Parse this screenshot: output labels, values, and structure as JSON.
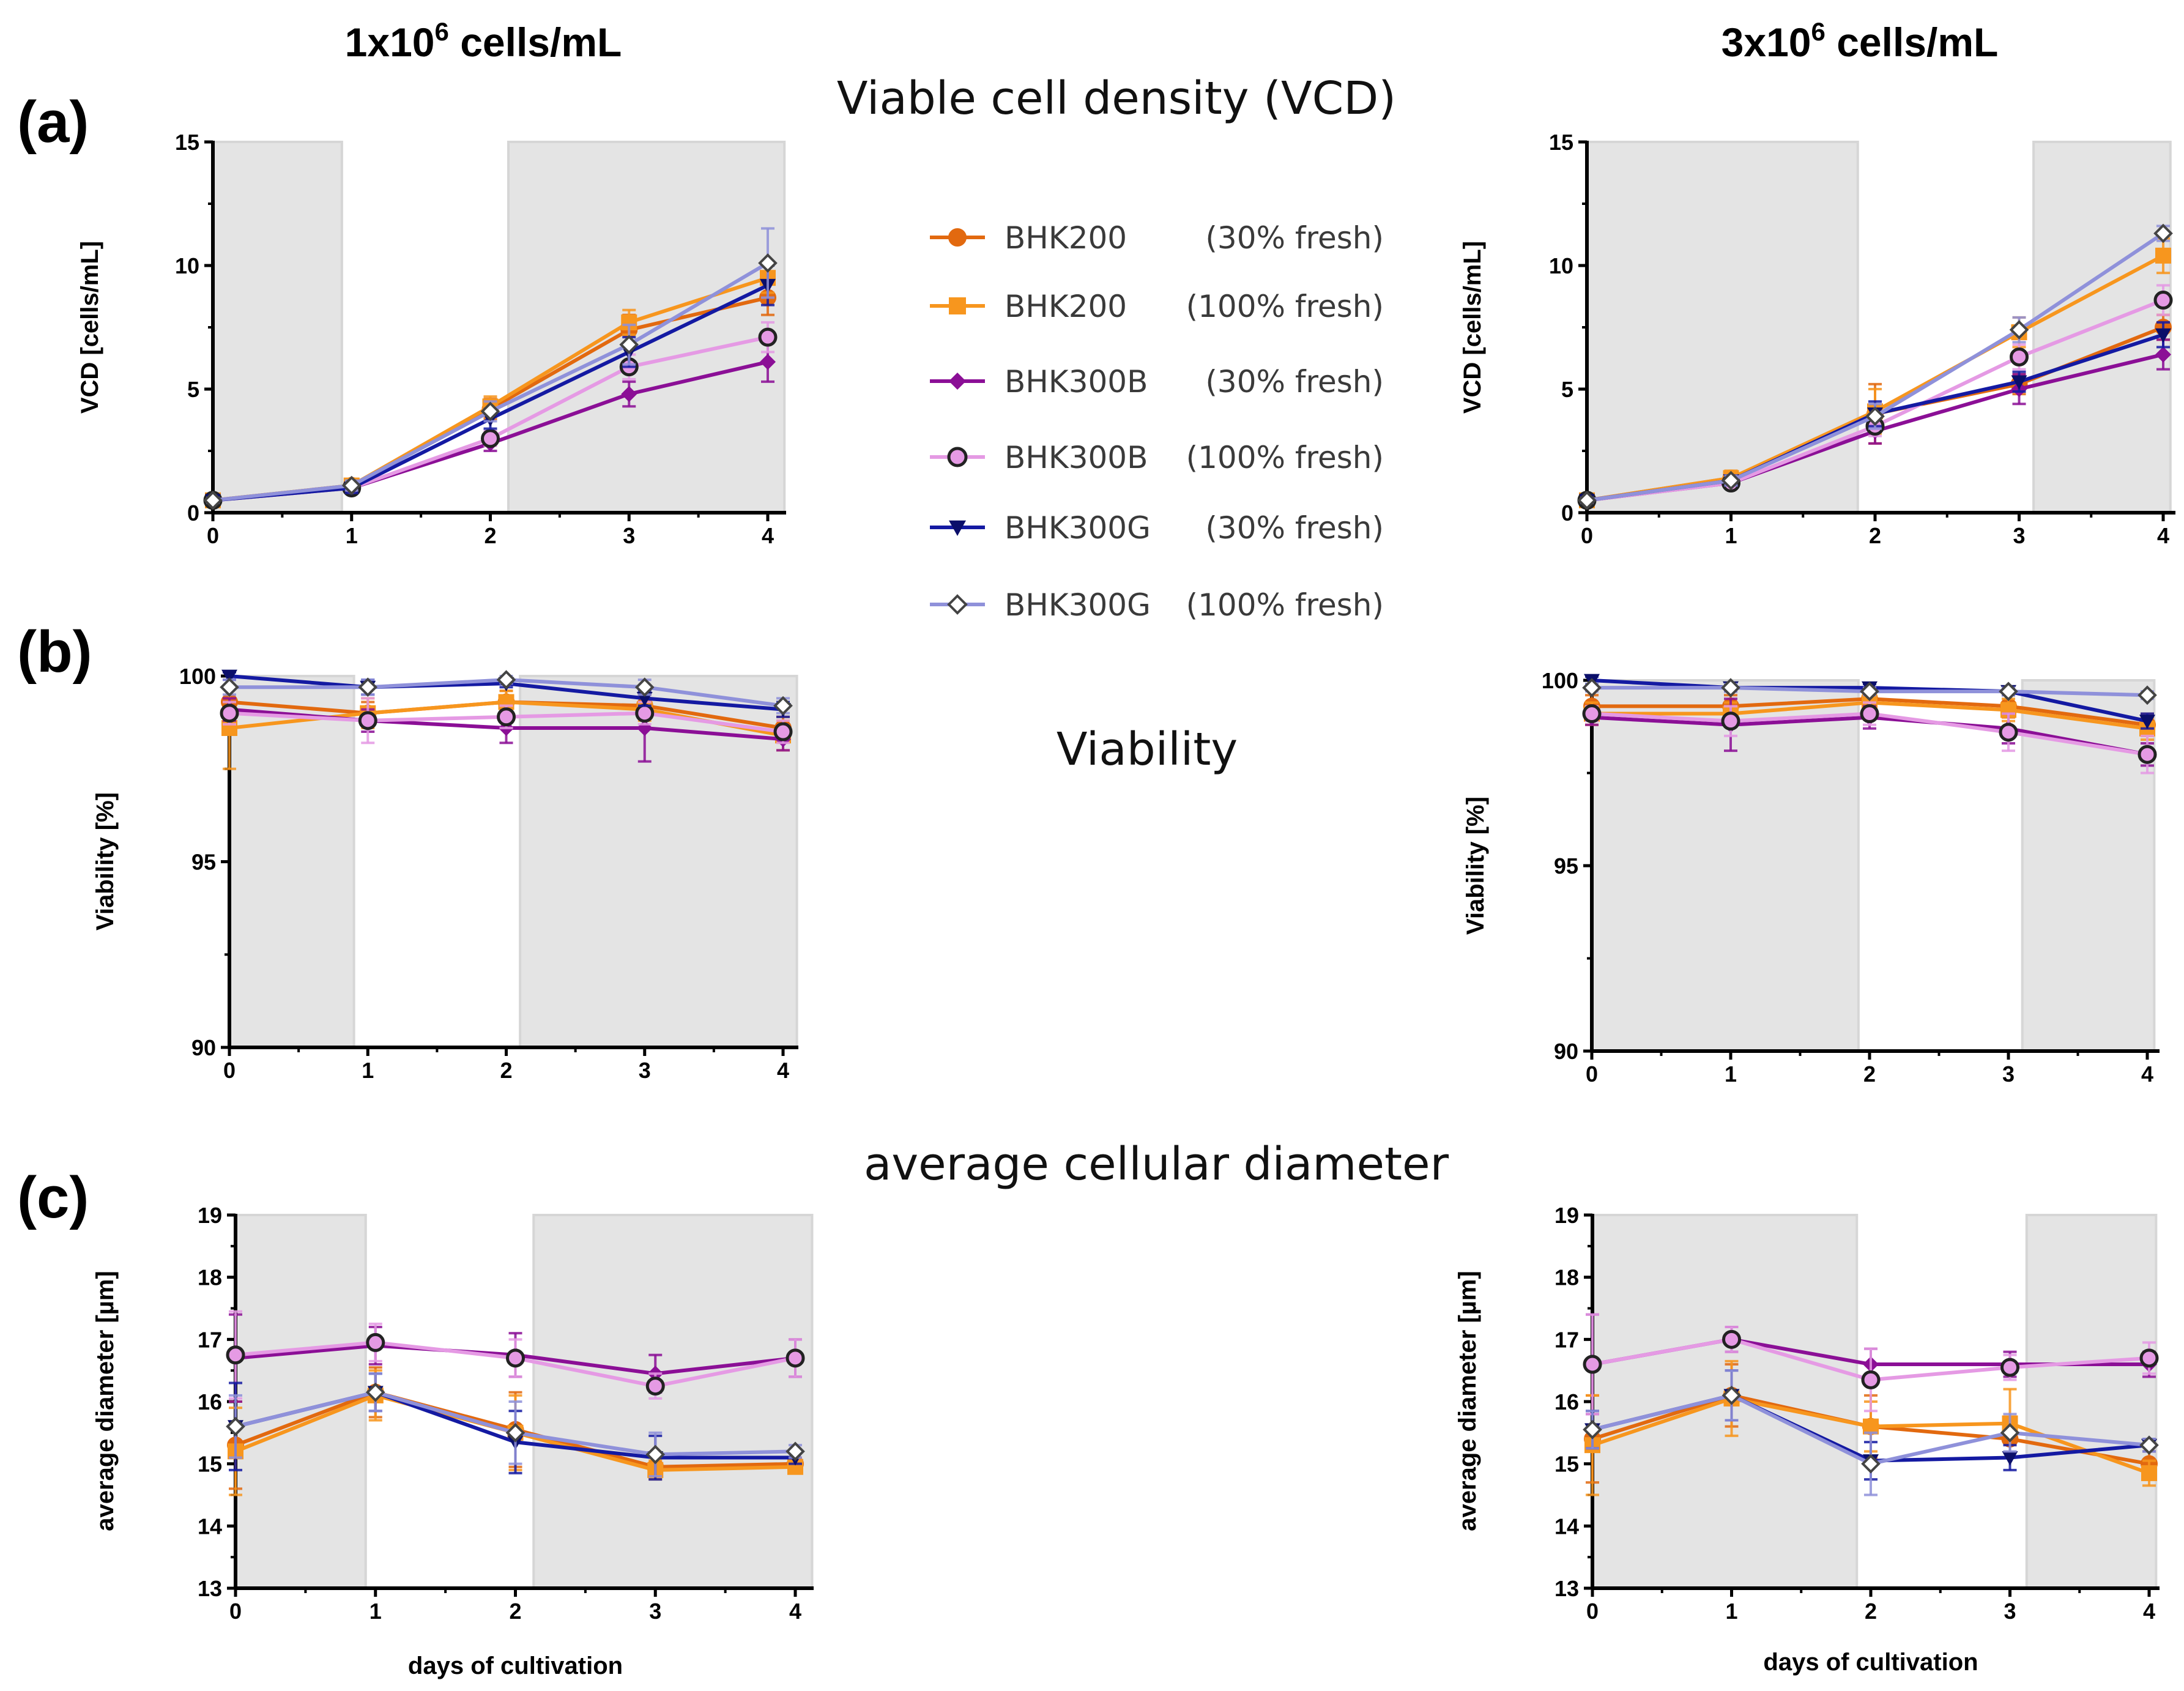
{
  "column_titles": [
    {
      "base": "1x10",
      "exp": "6",
      "rest": " cells/mL"
    },
    {
      "base": "3x10",
      "exp": "6",
      "rest": " cells/mL"
    }
  ],
  "panel_labels": [
    "(a)",
    "(b)",
    "(c)"
  ],
  "section_titles": [
    "Viable cell density (VCD)",
    "Viability",
    "average cellular diameter"
  ],
  "colors": {
    "bhk200_30": "#e2690f",
    "bhk200_100": "#f7961e",
    "bhk300b_30": "#8b0f96",
    "bhk300b_100": "#e59ae4",
    "bhk300g_30": "#141aa2",
    "bhk300g_100": "#8f91da",
    "shade": "#e4e4e4"
  },
  "legend": [
    {
      "name": "BHK200",
      "condition": "(30% fresh)",
      "marker": "circle",
      "color_key": "bhk200_30"
    },
    {
      "name": "BHK200",
      "condition": "(100% fresh)",
      "marker": "square",
      "color_key": "bhk200_100"
    },
    {
      "name": "BHK300B",
      "condition": "(30% fresh)",
      "marker": "diamond",
      "color_key": "bhk300b_30"
    },
    {
      "name": "BHK300B",
      "condition": "(100% fresh)",
      "marker": "circle-open",
      "color_key": "bhk300b_100"
    },
    {
      "name": "BHK300G",
      "condition": "(30% fresh)",
      "marker": "triangle-down",
      "color_key": "bhk300g_30"
    },
    {
      "name": "BHK300G",
      "condition": "(100% fresh)",
      "marker": "diamond-open",
      "color_key": "bhk300g_100"
    }
  ],
  "chart_data": [
    {
      "id": "vcd_1e6",
      "type": "line",
      "title": "Viable cell density (VCD)",
      "xlabel": "",
      "ylabel": "VCD [cells/mL]",
      "x": [
        0,
        1,
        2,
        3,
        4
      ],
      "xlim": [
        0,
        4
      ],
      "ylim": [
        0,
        15
      ],
      "yticks": [
        0,
        5,
        10,
        15
      ],
      "shaded_x": [
        [
          0,
          0.93
        ],
        [
          2.13,
          4.12
        ]
      ],
      "series": [
        {
          "name": "BHK200 (30% fresh)",
          "values": [
            0.5,
            1.1,
            4.2,
            7.4,
            8.7
          ],
          "err": [
            0.2,
            0.2,
            0.4,
            0.6,
            0.7
          ]
        },
        {
          "name": "BHK200 (100% fresh)",
          "values": [
            0.5,
            1.1,
            4.3,
            7.7,
            9.5
          ],
          "err": [
            0.2,
            0.2,
            0.4,
            0.5,
            0.6
          ]
        },
        {
          "name": "BHK300B (30% fresh)",
          "values": [
            0.5,
            1.0,
            2.8,
            4.8,
            6.1
          ],
          "err": [
            0.1,
            0.2,
            0.3,
            0.5,
            0.8
          ]
        },
        {
          "name": "BHK300B (100% fresh)",
          "values": [
            0.5,
            1.0,
            3.0,
            5.9,
            7.1
          ],
          "err": [
            0.1,
            0.2,
            0.3,
            0.5,
            0.6
          ]
        },
        {
          "name": "BHK300G (30% fresh)",
          "values": [
            0.5,
            1.0,
            3.8,
            6.5,
            9.2
          ],
          "err": [
            0.1,
            0.2,
            0.4,
            0.6,
            0.8
          ]
        },
        {
          "name": "BHK300G (100% fresh)",
          "values": [
            0.5,
            1.1,
            4.1,
            6.8,
            10.1
          ],
          "err": [
            0.1,
            0.2,
            0.4,
            0.8,
            1.4
          ]
        }
      ]
    },
    {
      "id": "vcd_3e6",
      "type": "line",
      "title": "Viable cell density (VCD)",
      "xlabel": "",
      "ylabel": "VCD [cells/mL]",
      "x": [
        0,
        1,
        2,
        3,
        4
      ],
      "xlim": [
        0,
        4
      ],
      "ylim": [
        0,
        15
      ],
      "yticks": [
        0,
        5,
        10,
        15
      ],
      "shaded_x": [
        [
          0,
          1.88
        ],
        [
          3.1,
          4.05
        ]
      ],
      "series": [
        {
          "name": "BHK200 (30% fresh)",
          "values": [
            0.5,
            1.4,
            4.0,
            5.2,
            7.5
          ],
          "err": [
            0.2,
            0.2,
            1.2,
            0.4,
            0.5
          ]
        },
        {
          "name": "BHK200 (100% fresh)",
          "values": [
            0.5,
            1.4,
            4.1,
            7.3,
            10.4
          ],
          "err": [
            0.2,
            0.3,
            0.9,
            0.6,
            0.7
          ]
        },
        {
          "name": "BHK300B (30% fresh)",
          "values": [
            0.5,
            1.2,
            3.3,
            5.0,
            6.4
          ],
          "err": [
            0.1,
            0.2,
            0.5,
            0.6,
            0.6
          ]
        },
        {
          "name": "BHK300B (100% fresh)",
          "values": [
            0.5,
            1.2,
            3.5,
            6.3,
            8.6
          ],
          "err": [
            0.1,
            0.2,
            0.4,
            0.5,
            0.6
          ]
        },
        {
          "name": "BHK300G (30% fresh)",
          "values": [
            0.5,
            1.3,
            4.0,
            5.3,
            7.2
          ],
          "err": [
            0.1,
            0.2,
            0.5,
            0.4,
            0.5
          ]
        },
        {
          "name": "BHK300G (100% fresh)",
          "values": [
            0.5,
            1.3,
            3.9,
            7.4,
            11.3
          ],
          "err": [
            0.1,
            0.2,
            0.5,
            0.5,
            0.3
          ]
        }
      ]
    },
    {
      "id": "via_1e6",
      "type": "line",
      "title": "Viability",
      "xlabel": "",
      "ylabel": "Viability [%]",
      "x": [
        0,
        1,
        2,
        3,
        4
      ],
      "xlim": [
        0,
        4
      ],
      "ylim": [
        90,
        100
      ],
      "yticks": [
        90,
        95,
        100
      ],
      "shaded_x": [
        [
          0,
          0.9
        ],
        [
          2.1,
          4.1
        ]
      ],
      "series": [
        {
          "name": "BHK200 (30% fresh)",
          "values": [
            99.3,
            99.0,
            99.3,
            99.2,
            98.6
          ],
          "err": [
            0.4,
            0.3,
            0.3,
            0.3,
            0.3
          ]
        },
        {
          "name": "BHK200 (100% fresh)",
          "values": [
            98.6,
            99.0,
            99.3,
            99.1,
            98.4
          ],
          "err": [
            1.1,
            0.4,
            0.3,
            0.3,
            0.4
          ]
        },
        {
          "name": "BHK300B (30% fresh)",
          "values": [
            99.1,
            98.8,
            98.6,
            98.6,
            98.3
          ],
          "err": [
            0.3,
            0.3,
            0.4,
            0.9,
            0.3
          ]
        },
        {
          "name": "BHK300B (100% fresh)",
          "values": [
            99.0,
            98.8,
            98.9,
            99.0,
            98.5
          ],
          "err": [
            0.3,
            0.6,
            0.3,
            0.3,
            0.3
          ]
        },
        {
          "name": "BHK300G (30% fresh)",
          "values": [
            100.0,
            99.7,
            99.8,
            99.4,
            99.1
          ],
          "err": [
            0.1,
            0.2,
            0.1,
            0.2,
            0.2
          ]
        },
        {
          "name": "BHK300G (100% fresh)",
          "values": [
            99.7,
            99.7,
            99.9,
            99.7,
            99.2
          ],
          "err": [
            0.2,
            0.2,
            0.1,
            0.2,
            0.2
          ]
        }
      ]
    },
    {
      "id": "via_3e6",
      "type": "line",
      "title": "Viability",
      "xlabel": "",
      "ylabel": "Viability [%]",
      "x": [
        0,
        1,
        2,
        3,
        4
      ],
      "xlim": [
        0,
        4
      ],
      "ylim": [
        90,
        100
      ],
      "yticks": [
        90,
        95,
        100
      ],
      "shaded_x": [
        [
          0,
          1.92
        ],
        [
          3.1,
          4.05
        ]
      ],
      "series": [
        {
          "name": "BHK200 (30% fresh)",
          "values": [
            99.3,
            99.3,
            99.5,
            99.3,
            98.8
          ],
          "err": [
            0.3,
            0.3,
            0.2,
            0.3,
            0.3
          ]
        },
        {
          "name": "BHK200 (100% fresh)",
          "values": [
            99.1,
            99.1,
            99.4,
            99.2,
            98.7
          ],
          "err": [
            0.3,
            0.3,
            0.2,
            0.3,
            0.3
          ]
        },
        {
          "name": "BHK300B (30% fresh)",
          "values": [
            99.0,
            98.8,
            99.0,
            98.7,
            98.0
          ],
          "err": [
            0.2,
            0.7,
            0.3,
            0.4,
            0.3
          ]
        },
        {
          "name": "BHK300B (100% fresh)",
          "values": [
            99.1,
            98.9,
            99.1,
            98.6,
            98.0
          ],
          "err": [
            0.2,
            0.4,
            0.3,
            0.5,
            0.5
          ]
        },
        {
          "name": "BHK300G (30% fresh)",
          "values": [
            100.0,
            99.8,
            99.8,
            99.7,
            98.9
          ],
          "err": [
            0.1,
            0.1,
            0.1,
            0.1,
            0.2
          ]
        },
        {
          "name": "BHK300G (100% fresh)",
          "values": [
            99.8,
            99.8,
            99.7,
            99.7,
            99.6
          ],
          "err": [
            0.1,
            0.1,
            0.1,
            0.1,
            0.1
          ]
        }
      ]
    },
    {
      "id": "diam_1e6",
      "type": "line",
      "title": "average cellular diameter",
      "xlabel": "days of cultivation",
      "ylabel": "average diameter [µm]",
      "x": [
        0,
        1,
        2,
        3,
        4
      ],
      "xlim": [
        0,
        4
      ],
      "ylim": [
        13,
        19
      ],
      "yticks": [
        13,
        14,
        15,
        16,
        17,
        18,
        19
      ],
      "shaded_x": [
        [
          0,
          0.93
        ],
        [
          2.13,
          4.12
        ]
      ],
      "series": [
        {
          "name": "BHK200 (30% fresh)",
          "values": [
            15.3,
            16.15,
            15.55,
            14.95,
            15.0
          ],
          "err": [
            0.7,
            0.4,
            0.6,
            0.15,
            0.1
          ]
        },
        {
          "name": "BHK200 (100% fresh)",
          "values": [
            15.2,
            16.1,
            15.5,
            14.9,
            14.95
          ],
          "err": [
            0.7,
            0.4,
            0.6,
            0.15,
            0.1
          ]
        },
        {
          "name": "BHK300B (30% fresh)",
          "values": [
            16.7,
            16.9,
            16.75,
            16.45,
            16.7
          ],
          "err": [
            0.7,
            0.3,
            0.35,
            0.3,
            0.3
          ]
        },
        {
          "name": "BHK300B (100% fresh)",
          "values": [
            16.75,
            16.95,
            16.7,
            16.25,
            16.7
          ],
          "err": [
            0.7,
            0.3,
            0.3,
            0.2,
            0.3
          ]
        },
        {
          "name": "BHK300G (30% fresh)",
          "values": [
            15.6,
            16.15,
            15.35,
            15.1,
            15.1
          ],
          "err": [
            0.7,
            0.3,
            0.5,
            0.35,
            0.1
          ]
        },
        {
          "name": "BHK300G (100% fresh)",
          "values": [
            15.6,
            16.15,
            15.5,
            15.15,
            15.2
          ],
          "err": [
            0.5,
            0.3,
            0.5,
            0.35,
            0.1
          ]
        }
      ]
    },
    {
      "id": "diam_3e6",
      "type": "line",
      "title": "average cellular diameter",
      "xlabel": "days of cultivation",
      "ylabel": "average diameter [µm]",
      "x": [
        0,
        1,
        2,
        3,
        4
      ],
      "xlim": [
        0,
        4
      ],
      "ylim": [
        13,
        19
      ],
      "yticks": [
        13,
        14,
        15,
        16,
        17,
        18,
        19
      ],
      "shaded_x": [
        [
          0,
          1.9
        ],
        [
          3.12,
          4.05
        ]
      ],
      "series": [
        {
          "name": "BHK200 (30% fresh)",
          "values": [
            15.4,
            16.1,
            15.6,
            15.4,
            15.0
          ],
          "err": [
            0.7,
            0.5,
            0.5,
            0.3,
            0.2
          ]
        },
        {
          "name": "BHK200 (100% fresh)",
          "values": [
            15.3,
            16.05,
            15.6,
            15.65,
            14.85
          ],
          "err": [
            0.8,
            0.6,
            0.4,
            0.55,
            0.2
          ]
        },
        {
          "name": "BHK300B (30% fresh)",
          "values": [
            16.6,
            17.0,
            16.6,
            16.6,
            16.6
          ],
          "err": [
            0.8,
            0.2,
            0.25,
            0.2,
            0.2
          ]
        },
        {
          "name": "BHK300B (100% fresh)",
          "values": [
            16.6,
            17.0,
            16.35,
            16.55,
            16.7
          ],
          "err": [
            0.8,
            0.2,
            0.5,
            0.2,
            0.25
          ]
        },
        {
          "name": "BHK300G (30% fresh)",
          "values": [
            15.55,
            16.1,
            15.05,
            15.1,
            15.3
          ],
          "err": [
            0.3,
            0.4,
            0.3,
            0.2,
            0.1
          ]
        },
        {
          "name": "BHK300G (100% fresh)",
          "values": [
            15.55,
            16.1,
            15.0,
            15.5,
            15.3
          ],
          "err": [
            0.3,
            0.4,
            0.5,
            0.3,
            0.1
          ]
        }
      ]
    }
  ]
}
